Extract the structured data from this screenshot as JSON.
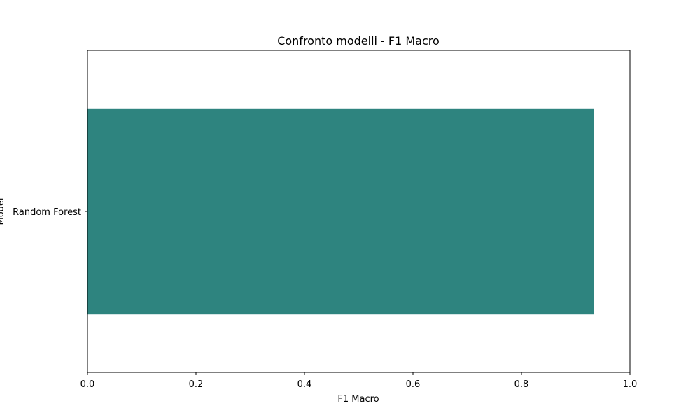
{
  "chart_data": {
    "type": "bar",
    "orientation": "horizontal",
    "title": "Confronto modelli - F1 Macro",
    "xlabel": "F1 Macro",
    "ylabel": "Model",
    "categories": [
      "Random Forest"
    ],
    "values": [
      0.933
    ],
    "xlim": [
      0,
      1
    ],
    "xticks": [
      0.0,
      0.2,
      0.4,
      0.6,
      0.8,
      1.0
    ],
    "xtick_labels": [
      "0.0",
      "0.2",
      "0.4",
      "0.6",
      "0.8",
      "1.0"
    ],
    "grid": false,
    "legend": "none",
    "bar_color": "#2e847f"
  }
}
